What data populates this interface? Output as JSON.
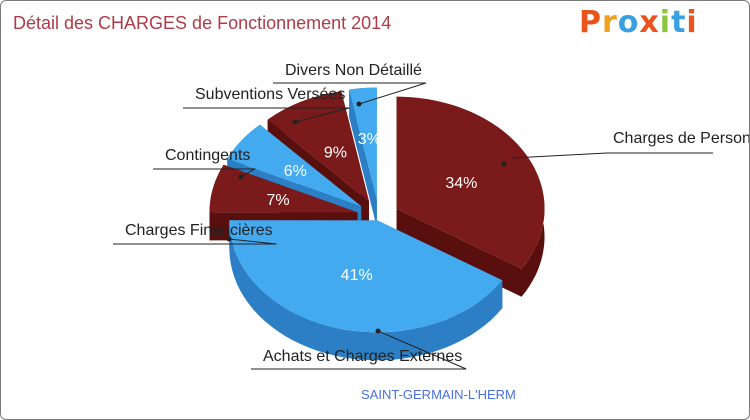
{
  "colors": {
    "title": "#b03a48",
    "footer": "#4a6fe0",
    "blue": "#44aaf0",
    "blue_side": "#2c7fc4",
    "red": "#7a1a1a",
    "red_side": "#5a0f0f",
    "logo": [
      "#e8541c",
      "#f0a020",
      "#3aa0e0",
      "#e8541c",
      "#8cc63f",
      "#3aa0e0",
      "#e8541c"
    ]
  },
  "header": {
    "title": "Détail des CHARGES de Fonctionnement 2014"
  },
  "logo": {
    "letters": [
      "P",
      "r",
      "o",
      "x",
      "i",
      "t",
      "i"
    ]
  },
  "footer": {
    "location": "SAINT-GERMAIN-L'HERM"
  },
  "chart_data": {
    "type": "pie",
    "title": "Détail des CHARGES de Fonctionnement 2014",
    "slices": [
      {
        "label": "Charges de Personnel",
        "value": 34,
        "percent_label": "34%",
        "color": "red"
      },
      {
        "label": "Achats et Charges Externes",
        "value": 41,
        "percent_label": "41%",
        "color": "blue"
      },
      {
        "label": "Charges Financières",
        "value": 7,
        "percent_label": "7%",
        "color": "red"
      },
      {
        "label": "Contingents",
        "value": 6,
        "percent_label": "6%",
        "color": "blue"
      },
      {
        "label": "Subventions Versées",
        "value": 9,
        "percent_label": "9%",
        "color": "red"
      },
      {
        "label": "Divers Non Détaillé",
        "value": 3,
        "percent_label": "3%",
        "color": "blue"
      }
    ]
  }
}
